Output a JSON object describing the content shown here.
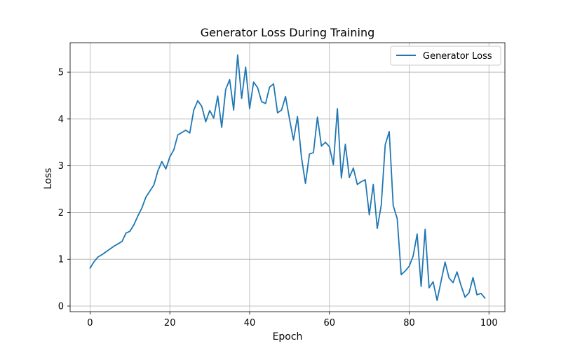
{
  "chart_data": {
    "type": "line",
    "title": "Generator Loss During Training",
    "xlabel": "Epoch",
    "ylabel": "Loss",
    "xlim": [
      -5,
      104
    ],
    "ylim": [
      -0.12,
      5.63
    ],
    "xticks": [
      0,
      20,
      40,
      60,
      80,
      100
    ],
    "yticks": [
      0,
      1,
      2,
      3,
      4,
      5
    ],
    "grid": true,
    "legend": {
      "position": "top-right",
      "entries": [
        "Generator Loss"
      ]
    },
    "series": [
      {
        "name": "Generator Loss",
        "color": "#1f77b4",
        "x": [
          0,
          1,
          2,
          3,
          4,
          5,
          6,
          7,
          8,
          9,
          10,
          11,
          12,
          13,
          14,
          15,
          16,
          17,
          18,
          19,
          20,
          21,
          22,
          23,
          24,
          25,
          26,
          27,
          28,
          29,
          30,
          31,
          32,
          33,
          34,
          35,
          36,
          37,
          38,
          39,
          40,
          41,
          42,
          43,
          44,
          45,
          46,
          47,
          48,
          49,
          50,
          51,
          52,
          53,
          54,
          55,
          56,
          57,
          58,
          59,
          60,
          61,
          62,
          63,
          64,
          65,
          66,
          67,
          68,
          69,
          70,
          71,
          72,
          73,
          74,
          75,
          76,
          77,
          78,
          79,
          80,
          81,
          82,
          83,
          84,
          85,
          86,
          87,
          88,
          89,
          90,
          91,
          92,
          93,
          94,
          95,
          96,
          97,
          98,
          99
        ],
        "values": [
          0.81,
          0.95,
          1.05,
          1.1,
          1.16,
          1.22,
          1.28,
          1.33,
          1.38,
          1.56,
          1.6,
          1.74,
          1.93,
          2.1,
          2.33,
          2.46,
          2.59,
          2.89,
          3.09,
          2.93,
          3.19,
          3.34,
          3.66,
          3.71,
          3.76,
          3.7,
          4.19,
          4.39,
          4.27,
          3.94,
          4.18,
          4.02,
          4.49,
          3.82,
          4.63,
          4.84,
          4.19,
          5.37,
          4.44,
          5.11,
          4.22,
          4.79,
          4.67,
          4.37,
          4.33,
          4.68,
          4.75,
          4.13,
          4.19,
          4.48,
          4.0,
          3.55,
          4.05,
          3.18,
          2.62,
          3.25,
          3.28,
          4.04,
          3.42,
          3.5,
          3.41,
          3.02,
          4.22,
          2.74,
          3.46,
          2.75,
          2.95,
          2.6,
          2.66,
          2.7,
          1.95,
          2.6,
          1.66,
          2.16,
          3.45,
          3.73,
          2.15,
          1.87,
          0.67,
          0.75,
          0.85,
          1.07,
          1.54,
          0.42,
          1.64,
          0.39,
          0.52,
          0.12,
          0.53,
          0.94,
          0.6,
          0.5,
          0.73,
          0.44,
          0.19,
          0.28,
          0.61,
          0.24,
          0.27,
          0.17
        ]
      }
    ]
  }
}
